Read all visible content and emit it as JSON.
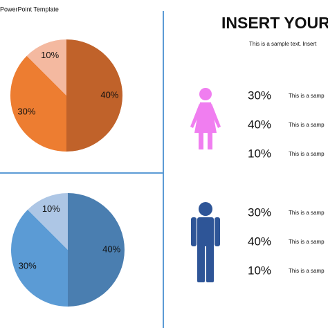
{
  "slide": {
    "template": "PowerPoint Template",
    "heading": "INSERT YOUR",
    "intro": "This is a sample text. Insert",
    "female_rows": [
      {
        "percent": "30%",
        "text": "This is a samp"
      },
      {
        "percent": "40%",
        "text": "This is a samp"
      },
      {
        "percent": "10%",
        "text": "This is a samp"
      }
    ],
    "male_rows": [
      {
        "percent": "30%",
        "text": "This is a samp"
      },
      {
        "percent": "40%",
        "text": "This is a samp"
      },
      {
        "percent": "10%",
        "text": "This is a samp"
      }
    ]
  },
  "chart_data": [
    {
      "type": "pie",
      "values": [
        40,
        30,
        10
      ],
      "value_labels": [
        "40%",
        "30%",
        "10%"
      ],
      "colors": [
        "#c0622a",
        "#ed7d31",
        "#f4b9a0"
      ]
    },
    {
      "type": "pie",
      "values": [
        40,
        30,
        10
      ],
      "value_labels": [
        "40%",
        "30%",
        "10%"
      ],
      "colors": [
        "#4a7eb0",
        "#5b9bd5",
        "#adc6e5"
      ]
    }
  ]
}
